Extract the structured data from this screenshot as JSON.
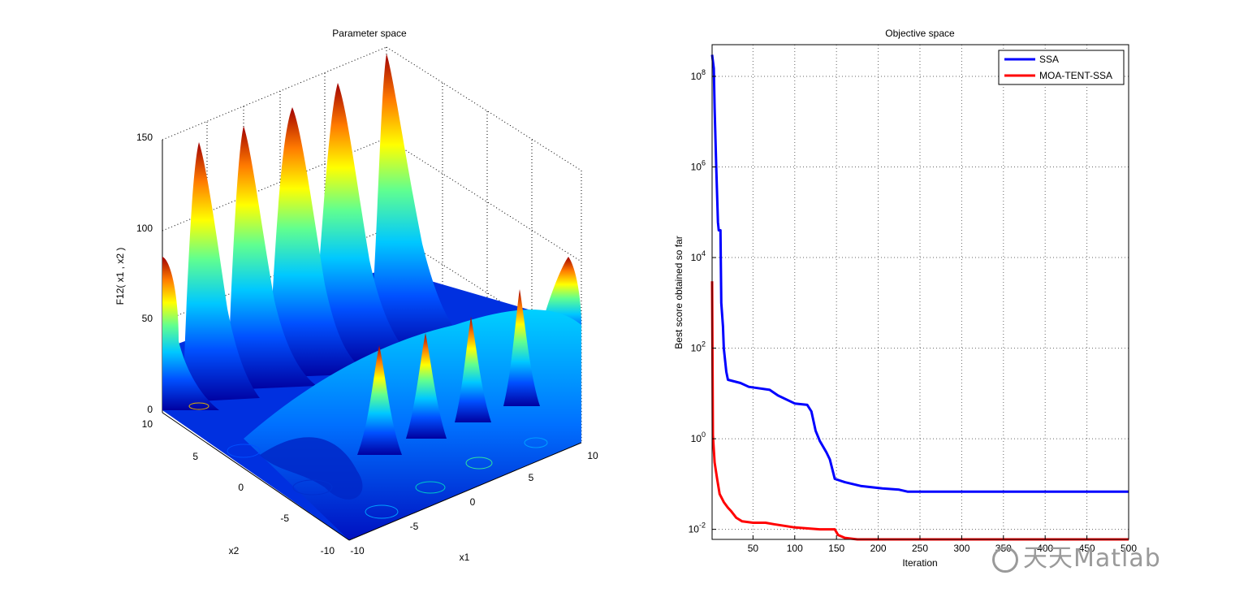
{
  "colors": {
    "ssa": "#0000ff",
    "moa": "#ff0000",
    "grid": "#666666"
  },
  "chart_data": [
    {
      "type": "surface",
      "title": "Parameter space",
      "zlabel": "F12( x1 , x2 )",
      "x1_ticks": [
        "-10",
        "-5",
        "0",
        "5",
        "10"
      ],
      "x2_ticks": [
        "-10",
        "-5",
        "0",
        "5",
        "10"
      ],
      "z_ticks": [
        "0",
        "50",
        "100",
        "150"
      ],
      "xlabel": "x1",
      "ylabel": "x2",
      "xlim": [
        -10,
        10
      ],
      "ylim": [
        -10,
        10
      ],
      "zlim": [
        0,
        150
      ],
      "colormap": "jet",
      "contour_projection": true
    },
    {
      "type": "line",
      "title": "Objective space",
      "xlabel": "Iteration",
      "ylabel": "Best score obtained so far",
      "yscale": "log",
      "xlim": [
        1,
        500
      ],
      "ylim": [
        0.006,
        500000000
      ],
      "x_ticks": [
        "50",
        "100",
        "150",
        "200",
        "250",
        "300",
        "350",
        "400",
        "450",
        "500"
      ],
      "y_tick_values": [
        0.01,
        1,
        100,
        10000,
        1000000,
        100000000
      ],
      "grid": true,
      "legend_position": "top-right",
      "series": [
        {
          "name": "SSA",
          "color": "#0000ff",
          "points": [
            [
              1,
              300000000
            ],
            [
              3,
              150000000
            ],
            [
              4,
              20000000
            ],
            [
              6,
              1000000
            ],
            [
              8,
              60000
            ],
            [
              9,
              40000
            ],
            [
              11,
              40000
            ],
            [
              12,
              1000
            ],
            [
              14,
              300
            ],
            [
              15,
              100
            ],
            [
              18,
              30
            ],
            [
              20,
              20
            ],
            [
              35,
              17
            ],
            [
              45,
              14
            ],
            [
              70,
              12
            ],
            [
              80,
              9
            ],
            [
              100,
              6
            ],
            [
              115,
              5.6
            ],
            [
              120,
              4
            ],
            [
              125,
              1.5
            ],
            [
              130,
              0.9
            ],
            [
              138,
              0.5
            ],
            [
              142,
              0.35
            ],
            [
              148,
              0.13
            ],
            [
              160,
              0.11
            ],
            [
              180,
              0.09
            ],
            [
              205,
              0.08
            ],
            [
              225,
              0.075
            ],
            [
              235,
              0.068
            ],
            [
              300,
              0.068
            ],
            [
              400,
              0.068
            ],
            [
              500,
              0.068
            ]
          ]
        },
        {
          "name": "MOA-TENT-SSA",
          "color": "#ff0000",
          "points": [
            [
              1,
              3000
            ],
            [
              2,
              1.2
            ],
            [
              4,
              0.3
            ],
            [
              7,
              0.13
            ],
            [
              10,
              0.06
            ],
            [
              15,
              0.04
            ],
            [
              20,
              0.03
            ],
            [
              24,
              0.025
            ],
            [
              30,
              0.018
            ],
            [
              37,
              0.015
            ],
            [
              50,
              0.014
            ],
            [
              65,
              0.014
            ],
            [
              75,
              0.013
            ],
            [
              100,
              0.011
            ],
            [
              130,
              0.01
            ],
            [
              148,
              0.01
            ],
            [
              152,
              0.0075
            ],
            [
              160,
              0.0065
            ],
            [
              175,
              0.006
            ],
            [
              500,
              0.006
            ]
          ]
        }
      ]
    }
  ],
  "watermark": {
    "text": "天天Matlab"
  }
}
